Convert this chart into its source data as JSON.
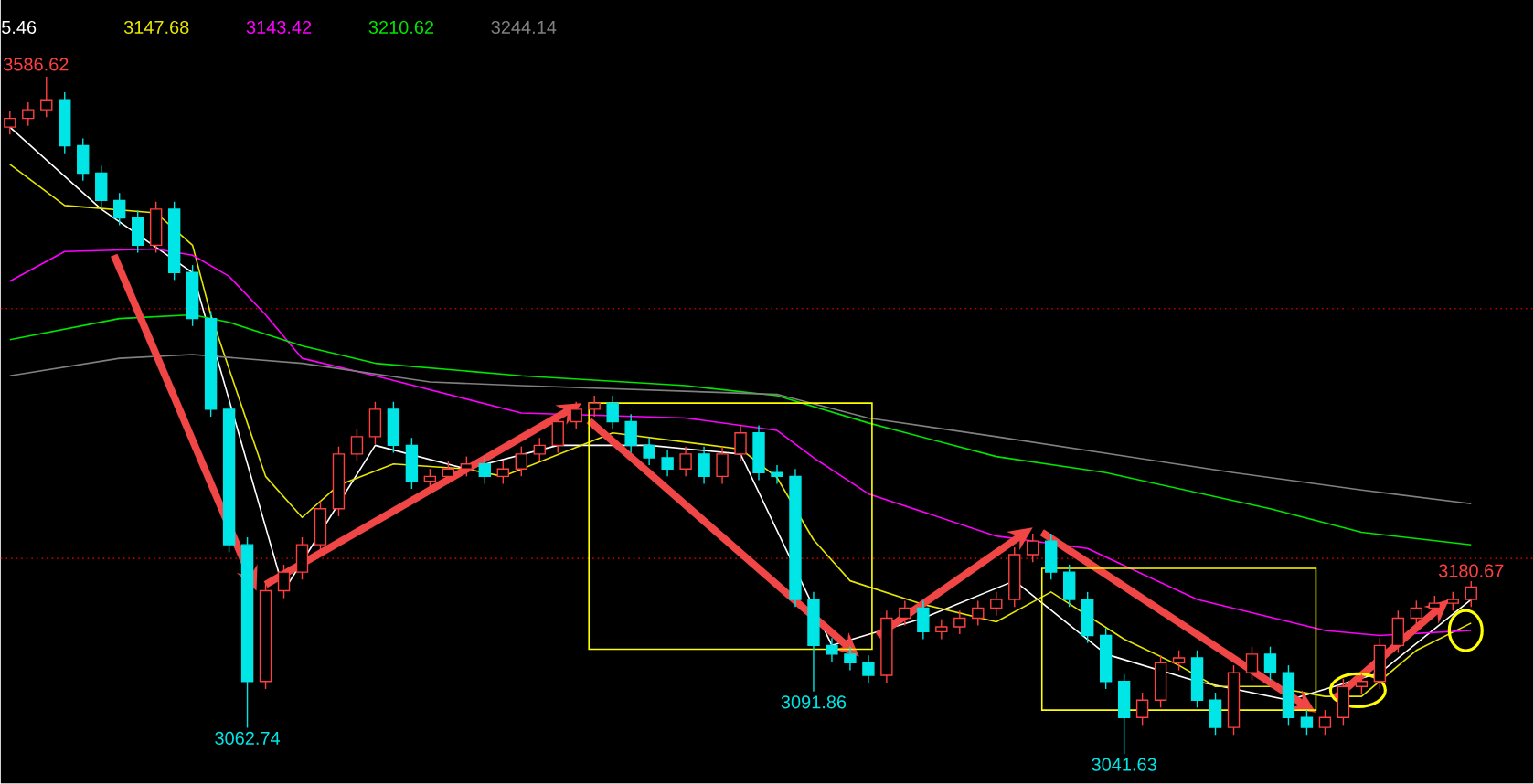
{
  "chart_data": {
    "type": "candlestick",
    "categories": [
      null,
      null,
      null,
      null,
      null,
      null,
      null,
      null,
      null,
      null,
      null,
      null,
      null,
      null,
      null,
      null,
      null,
      null,
      null,
      null,
      null,
      null,
      null,
      null,
      null,
      null,
      null,
      null,
      null,
      null,
      null,
      null,
      null,
      null,
      null,
      null,
      null,
      null,
      null,
      null,
      null,
      null,
      null,
      null,
      null,
      null,
      null,
      null,
      null,
      null,
      null,
      null,
      null,
      null,
      null,
      null,
      null,
      null,
      null,
      null,
      null,
      null,
      null,
      null,
      null,
      null,
      null,
      null,
      null,
      null,
      null,
      null,
      null,
      null,
      null,
      null,
      null,
      null,
      null,
      null,
      null
    ],
    "ohlc": [
      [
        3546,
        3559,
        3540,
        3553
      ],
      [
        3553,
        3566,
        3547,
        3560
      ],
      [
        3560,
        3586.62,
        3554,
        3568
      ],
      [
        3568,
        3574,
        3525,
        3531
      ],
      [
        3531,
        3537,
        3503,
        3509
      ],
      [
        3509,
        3515,
        3481,
        3487
      ],
      [
        3487,
        3493,
        3467,
        3473
      ],
      [
        3473,
        3479,
        3445,
        3451
      ],
      [
        3451,
        3486,
        3445,
        3480
      ],
      [
        3480,
        3486,
        3423,
        3429
      ],
      [
        3429,
        3435,
        3386,
        3392
      ],
      [
        3392,
        3398,
        3313,
        3319
      ],
      [
        3319,
        3325,
        3204,
        3210
      ],
      [
        3210,
        3216,
        3062.74,
        3100
      ],
      [
        3100,
        3179,
        3094,
        3173
      ],
      [
        3173,
        3194,
        3167,
        3188
      ],
      [
        3188,
        3216,
        3182,
        3210
      ],
      [
        3210,
        3245,
        3204,
        3239
      ],
      [
        3239,
        3289,
        3233,
        3283
      ],
      [
        3283,
        3303,
        3277,
        3297
      ],
      [
        3297,
        3325,
        3291,
        3319
      ],
      [
        3319,
        3325,
        3284,
        3290
      ],
      [
        3290,
        3296,
        3255,
        3261
      ],
      [
        3261,
        3271,
        3255,
        3265
      ],
      [
        3265,
        3277,
        3259,
        3271
      ],
      [
        3271,
        3281,
        3265,
        3275
      ],
      [
        3275,
        3281,
        3259,
        3265
      ],
      [
        3265,
        3277,
        3259,
        3271
      ],
      [
        3271,
        3289,
        3265,
        3283
      ],
      [
        3283,
        3296,
        3277,
        3290
      ],
      [
        3290,
        3315,
        3284,
        3309
      ],
      [
        3309,
        3325,
        3303,
        3319
      ],
      [
        3319,
        3330,
        3313,
        3324
      ],
      [
        3324,
        3330,
        3303,
        3309
      ],
      [
        3309,
        3315,
        3284,
        3290
      ],
      [
        3290,
        3296,
        3274,
        3280
      ],
      [
        3280,
        3286,
        3265,
        3271
      ],
      [
        3271,
        3289,
        3265,
        3283
      ],
      [
        3283,
        3289,
        3259,
        3265
      ],
      [
        3265,
        3289,
        3259,
        3283
      ],
      [
        3283,
        3306,
        3277,
        3300
      ],
      [
        3300,
        3306,
        3262,
        3268
      ],
      [
        3268,
        3274,
        3259,
        3265
      ],
      [
        3265,
        3271,
        3160,
        3166
      ],
      [
        3166,
        3172,
        3091.86,
        3129
      ],
      [
        3129,
        3135,
        3116,
        3122
      ],
      [
        3122,
        3128,
        3109,
        3115
      ],
      [
        3115,
        3121,
        3099,
        3105
      ],
      [
        3105,
        3157,
        3099,
        3151
      ],
      [
        3151,
        3165,
        3145,
        3159
      ],
      [
        3159,
        3165,
        3134,
        3140
      ],
      [
        3140,
        3150,
        3134,
        3144
      ],
      [
        3144,
        3157,
        3138,
        3151
      ],
      [
        3151,
        3165,
        3145,
        3159
      ],
      [
        3159,
        3172,
        3153,
        3166
      ],
      [
        3166,
        3208,
        3160,
        3202
      ],
      [
        3202,
        3219,
        3196,
        3213
      ],
      [
        3213,
        3219,
        3182,
        3188
      ],
      [
        3188,
        3194,
        3160,
        3166
      ],
      [
        3166,
        3172,
        3131,
        3137
      ],
      [
        3137,
        3143,
        3094,
        3100
      ],
      [
        3100,
        3106,
        3041.63,
        3071
      ],
      [
        3071,
        3091,
        3065,
        3085
      ],
      [
        3085,
        3121,
        3079,
        3115
      ],
      [
        3115,
        3125,
        3109,
        3119
      ],
      [
        3119,
        3125,
        3079,
        3085
      ],
      [
        3085,
        3091,
        3057,
        3063
      ],
      [
        3063,
        3113,
        3057,
        3107
      ],
      [
        3107,
        3128,
        3101,
        3122
      ],
      [
        3122,
        3128,
        3101,
        3107
      ],
      [
        3107,
        3113,
        3065,
        3071
      ],
      [
        3071,
        3077,
        3057,
        3063
      ],
      [
        3063,
        3077,
        3057,
        3071
      ],
      [
        3071,
        3102,
        3065,
        3096
      ],
      [
        3096,
        3106,
        3090,
        3100
      ],
      [
        3100,
        3135,
        3094,
        3129
      ],
      [
        3129,
        3157,
        3123,
        3151
      ],
      [
        3151,
        3165,
        3145,
        3159
      ],
      [
        3159,
        3169,
        3153,
        3163
      ],
      [
        3163,
        3172,
        3157,
        3166
      ],
      [
        3166,
        3180.67,
        3160,
        3176
      ]
    ],
    "colors": [
      "#ff4040",
      "#ff4040",
      "#ff4040",
      "#00e5e5",
      "#00e5e5",
      "#00e5e5",
      "#00e5e5",
      "#00e5e5",
      "#ff4040",
      "#00e5e5",
      "#00e5e5",
      "#00e5e5",
      "#00e5e5",
      "#00e5e5",
      "#ff4040",
      "#ff4040",
      "#ff4040",
      "#ff4040",
      "#ff4040",
      "#ff4040",
      "#ff4040",
      "#00e5e5",
      "#00e5e5",
      "#ff4040",
      "#ff4040",
      "#ff4040",
      "#00e5e5",
      "#ff4040",
      "#ff4040",
      "#ff4040",
      "#ff4040",
      "#ff4040",
      "#ff4040",
      "#00e5e5",
      "#00e5e5",
      "#00e5e5",
      "#00e5e5",
      "#ff4040",
      "#00e5e5",
      "#ff4040",
      "#ff4040",
      "#00e5e5",
      "#00e5e5",
      "#00e5e5",
      "#00e5e5",
      "#00e5e5",
      "#00e5e5",
      "#00e5e5",
      "#ff4040",
      "#ff4040",
      "#00e5e5",
      "#ff4040",
      "#ff4040",
      "#ff4040",
      "#ff4040",
      "#ff4040",
      "#ff4040",
      "#00e5e5",
      "#00e5e5",
      "#00e5e5",
      "#00e5e5",
      "#00e5e5",
      "#ff4040",
      "#ff4040",
      "#ff4040",
      "#00e5e5",
      "#00e5e5",
      "#ff4040",
      "#ff4040",
      "#00e5e5",
      "#00e5e5",
      "#00e5e5",
      "#ff4040",
      "#ff4040",
      "#ff4040",
      "#ff4040",
      "#ff4040",
      "#ff4040",
      "#ff4040",
      "#ff4040",
      "#ff4040"
    ],
    "series": [
      {
        "type": "line",
        "name": "5.46",
        "color": "#ffffff",
        "values": [
          3546,
          null,
          null,
          null,
          null,
          3480,
          null,
          null,
          null,
          null,
          3429,
          null,
          null,
          null,
          null,
          3173,
          null,
          null,
          null,
          null,
          3290,
          null,
          null,
          null,
          null,
          3271,
          null,
          null,
          null,
          null,
          3290,
          null,
          null,
          null,
          null,
          3290,
          null,
          null,
          null,
          null,
          3283,
          null,
          null,
          null,
          null,
          3129,
          null,
          null,
          null,
          null,
          3151,
          null,
          null,
          null,
          null,
          3181,
          null,
          null,
          null,
          null,
          3122,
          null,
          null,
          null,
          null,
          3100,
          null,
          null,
          null,
          null,
          3085,
          null,
          null,
          null,
          null,
          3107,
          null,
          null,
          null,
          null,
          3166
        ]
      },
      {
        "type": "line",
        "name": "3147.68",
        "color": "#e6e600",
        "values": [
          3516,
          null,
          null,
          3483,
          null,
          null,
          null,
          null,
          3477,
          null,
          3451,
          3395,
          null,
          3308,
          3265,
          null,
          3232,
          null,
          3258,
          null,
          null,
          3275,
          null,
          null,
          null,
          3271,
          null,
          3265,
          null,
          null,
          null,
          null,
          null,
          3300,
          null,
          null,
          null,
          null,
          null,
          null,
          3287,
          null,
          3264,
          null,
          3214,
          null,
          3181,
          null,
          null,
          null,
          3162,
          null,
          null,
          null,
          3148,
          null,
          null,
          3172,
          null,
          null,
          null,
          3134,
          null,
          null,
          3113,
          null,
          3096,
          null,
          null,
          3096,
          null,
          null,
          3088,
          null,
          3088,
          null,
          null,
          3125,
          null,
          null,
          3147
        ]
      },
      {
        "type": "line",
        "name": "3143.42",
        "color": "#ff00ff",
        "values": [
          3422,
          null,
          null,
          3446,
          null,
          null,
          null,
          null,
          3448,
          null,
          3443,
          null,
          3426,
          null,
          3395,
          null,
          3360,
          null,
          null,
          null,
          3346,
          null,
          null,
          null,
          null,
          null,
          null,
          null,
          3316,
          null,
          null,
          null,
          null,
          null,
          null,
          null,
          null,
          3312,
          null,
          null,
          null,
          null,
          3302,
          null,
          3280,
          null,
          null,
          3251,
          null,
          null,
          null,
          null,
          null,
          null,
          3217,
          null,
          null,
          null,
          null,
          3207,
          null,
          null,
          null,
          null,
          null,
          3166,
          null,
          null,
          null,
          null,
          null,
          null,
          3141,
          null,
          null,
          3137,
          null,
          null,
          null,
          null,
          3141
        ]
      },
      {
        "type": "line",
        "name": "3210.62",
        "color": "#00e600",
        "values": [
          3375,
          null,
          null,
          null,
          null,
          null,
          3392,
          null,
          null,
          null,
          3395,
          null,
          3389,
          null,
          null,
          null,
          3370,
          null,
          null,
          null,
          3356,
          null,
          null,
          null,
          null,
          null,
          null,
          null,
          3346,
          null,
          null,
          null,
          null,
          null,
          null,
          null,
          null,
          3338,
          null,
          null,
          null,
          null,
          3330,
          null,
          null,
          null,
          null,
          3308,
          null,
          null,
          null,
          null,
          null,
          null,
          3281,
          null,
          null,
          null,
          null,
          null,
          3268,
          null,
          null,
          null,
          null,
          null,
          null,
          null,
          null,
          3239,
          null,
          null,
          null,
          null,
          3220,
          null,
          null,
          null,
          null,
          null,
          3210
        ]
      },
      {
        "type": "line",
        "name": "3244.14",
        "color": "#808080",
        "values": [
          3346,
          null,
          null,
          null,
          null,
          null,
          3360,
          null,
          null,
          null,
          3363,
          null,
          null,
          null,
          null,
          null,
          3356,
          null,
          null,
          null,
          null,
          null,
          null,
          3341,
          null,
          null,
          null,
          null,
          3338,
          null,
          null,
          null,
          null,
          null,
          null,
          null,
          null,
          null,
          null,
          null,
          null,
          null,
          3331,
          null,
          null,
          null,
          null,
          3312,
          null,
          null,
          null,
          null,
          null,
          null,
          3297,
          null,
          null,
          null,
          null,
          null,
          null,
          null,
          null,
          null,
          null,
          null,
          null,
          3268,
          null,
          null,
          null,
          null,
          null,
          null,
          3254,
          null,
          null,
          null,
          null,
          null,
          3243
        ]
      }
    ],
    "legend": "top left",
    "ref_lines": [
      {
        "axis": "y",
        "value": 3400,
        "color": "#b40000",
        "line_style": "dotted"
      },
      {
        "axis": "y",
        "value": 3199,
        "color": "#b40000",
        "line_style": "dotted"
      }
    ],
    "annotations": [
      "3586.62",
      {
        "text": "3062.74",
        "y": 3062.74
      },
      {
        "text": "3091.86",
        "y": 3091.86
      },
      {
        "text": "3041.63",
        "y": 3041.63
      },
      {
        "text": "3180.67",
        "y": 3180.67
      }
    ]
  }
}
